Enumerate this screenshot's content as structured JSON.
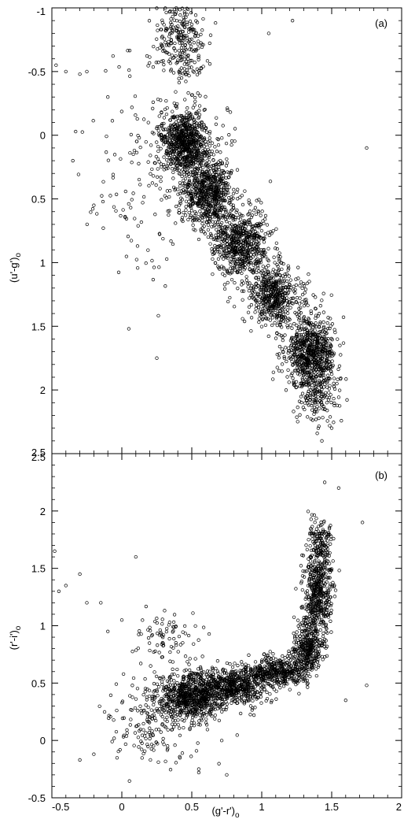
{
  "chart_data": [
    {
      "type": "scatter",
      "panel_label": "(a)",
      "xlim": [
        -0.5,
        2
      ],
      "ylim": [
        -1,
        2.5
      ],
      "y_inverted": true,
      "xlabel": "",
      "ylabel": "(u'-g')",
      "ylabel_subscript": "o",
      "y_ticks": [
        "-1",
        "-0.5",
        "0",
        "0.5",
        "1",
        "1.5",
        "2",
        "2.5"
      ],
      "y_tick_values": [
        -1,
        -0.5,
        0,
        0.5,
        1,
        1.5,
        2,
        2.5
      ],
      "x_ticks": [],
      "grid": false,
      "marker": "open-circle",
      "color": "#000000",
      "clusters": [
        {
          "x": 0.42,
          "y": -0.75,
          "sx": 0.09,
          "sy": 0.18,
          "n": 260
        },
        {
          "x": 0.45,
          "y": 0.05,
          "sx": 0.08,
          "sy": 0.12,
          "n": 700
        },
        {
          "x": 0.62,
          "y": 0.45,
          "sx": 0.09,
          "sy": 0.14,
          "n": 650
        },
        {
          "x": 0.85,
          "y": 0.85,
          "sx": 0.1,
          "sy": 0.13,
          "n": 600
        },
        {
          "x": 1.08,
          "y": 1.25,
          "sx": 0.1,
          "sy": 0.12,
          "n": 500
        },
        {
          "x": 1.35,
          "y": 1.7,
          "sx": 0.09,
          "sy": 0.13,
          "n": 700
        },
        {
          "x": 1.4,
          "y": 2.05,
          "sx": 0.08,
          "sy": 0.12,
          "n": 160
        },
        {
          "x": 0.3,
          "y": 0.2,
          "sx": 0.25,
          "sy": 0.45,
          "n": 220
        }
      ],
      "outliers": [
        {
          "x": -0.47,
          "y": -0.55
        },
        {
          "x": -0.4,
          "y": -0.5
        },
        {
          "x": -0.3,
          "y": -0.48
        },
        {
          "x": -0.25,
          "y": -0.5
        },
        {
          "x": -0.35,
          "y": 0.2
        },
        {
          "x": -0.2,
          "y": 0.55
        },
        {
          "x": 1.05,
          "y": -0.8
        },
        {
          "x": 1.22,
          "y": -0.9
        },
        {
          "x": 1.75,
          "y": 0.1
        },
        {
          "x": 1.43,
          "y": 2.4
        },
        {
          "x": 1.5,
          "y": 2.3
        },
        {
          "x": 0.05,
          "y": 1.52
        },
        {
          "x": 0.25,
          "y": 1.75
        },
        {
          "x": -0.1,
          "y": -0.3
        }
      ]
    },
    {
      "type": "scatter",
      "panel_label": "(b)",
      "xlim": [
        -0.5,
        2
      ],
      "ylim": [
        -0.5,
        2.5
      ],
      "y_inverted": false,
      "xlabel": "(g'-r')",
      "xlabel_subscript": "o",
      "ylabel": "(r'-i')",
      "ylabel_subscript": "o",
      "y_ticks": [
        "-0.5",
        "0",
        "0.5",
        "1",
        "1.5",
        "2",
        "2.5"
      ],
      "y_tick_values": [
        -0.5,
        0,
        0.5,
        1,
        1.5,
        2,
        2.5
      ],
      "x_ticks": [
        "-0.5",
        "0",
        "0.5",
        "1",
        "1.5",
        "2"
      ],
      "x_tick_values": [
        -0.5,
        0,
        0.5,
        1,
        1.5,
        2
      ],
      "grid": false,
      "marker": "open-circle",
      "color": "#000000",
      "clusters": [
        {
          "x": 0.5,
          "y": 0.38,
          "sx": 0.12,
          "sy": 0.1,
          "n": 700
        },
        {
          "x": 0.8,
          "y": 0.48,
          "sx": 0.12,
          "sy": 0.08,
          "n": 550
        },
        {
          "x": 1.1,
          "y": 0.6,
          "sx": 0.1,
          "sy": 0.07,
          "n": 380
        },
        {
          "x": 1.32,
          "y": 0.8,
          "sx": 0.05,
          "sy": 0.12,
          "n": 300
        },
        {
          "x": 1.4,
          "y": 1.25,
          "sx": 0.05,
          "sy": 0.22,
          "n": 520
        },
        {
          "x": 1.42,
          "y": 1.75,
          "sx": 0.04,
          "sy": 0.1,
          "n": 120
        },
        {
          "x": 0.25,
          "y": 0.2,
          "sx": 0.18,
          "sy": 0.2,
          "n": 200
        },
        {
          "x": 0.3,
          "y": 0.9,
          "sx": 0.12,
          "sy": 0.12,
          "n": 80
        }
      ],
      "outliers": [
        {
          "x": -0.48,
          "y": 1.65
        },
        {
          "x": -0.4,
          "y": 1.35
        },
        {
          "x": -0.3,
          "y": 1.45
        },
        {
          "x": -0.25,
          "y": 1.2
        },
        {
          "x": -0.15,
          "y": 1.2
        },
        {
          "x": -0.45,
          "y": 1.3
        },
        {
          "x": -0.3,
          "y": -0.17
        },
        {
          "x": -0.2,
          "y": -0.12
        },
        {
          "x": 0.1,
          "y": 1.6
        },
        {
          "x": 1.75,
          "y": 0.48
        },
        {
          "x": 1.72,
          "y": 1.9
        },
        {
          "x": 1.55,
          "y": 2.2
        },
        {
          "x": 1.45,
          "y": 2.25
        },
        {
          "x": 0.75,
          "y": -0.3
        },
        {
          "x": 0.55,
          "y": -0.25
        },
        {
          "x": -0.1,
          "y": 0.95
        },
        {
          "x": 0.0,
          "y": 1.05
        },
        {
          "x": 1.6,
          "y": 0.35
        }
      ]
    }
  ]
}
